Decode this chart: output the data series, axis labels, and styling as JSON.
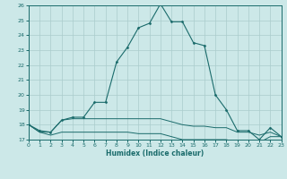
{
  "xlabel": "Humidex (Indice chaleur)",
  "background_color": "#cce8e8",
  "grid_color": "#aacccc",
  "line_color": "#1a6b6b",
  "x_values": [
    0,
    1,
    2,
    3,
    4,
    5,
    6,
    7,
    8,
    9,
    10,
    11,
    12,
    13,
    14,
    15,
    16,
    17,
    18,
    19,
    20,
    21,
    22,
    23
  ],
  "series1": [
    18.0,
    17.6,
    17.5,
    18.3,
    18.5,
    18.5,
    19.5,
    19.5,
    22.2,
    23.2,
    24.5,
    24.8,
    26.1,
    24.9,
    24.9,
    23.5,
    23.3,
    20.0,
    19.0,
    17.6,
    17.6,
    17.0,
    17.8,
    17.2
  ],
  "series2": [
    18.0,
    17.5,
    17.5,
    18.3,
    18.4,
    18.4,
    18.4,
    18.4,
    18.4,
    18.4,
    18.4,
    18.4,
    18.4,
    18.2,
    18.0,
    17.9,
    17.9,
    17.8,
    17.8,
    17.5,
    17.5,
    17.3,
    17.5,
    17.2
  ],
  "series3": [
    18.0,
    17.5,
    17.3,
    17.5,
    17.5,
    17.5,
    17.5,
    17.5,
    17.5,
    17.5,
    17.4,
    17.4,
    17.4,
    17.2,
    17.0,
    17.0,
    17.0,
    17.0,
    17.0,
    16.8,
    16.8,
    16.8,
    17.2,
    17.2
  ],
  "ylim": [
    17,
    26
  ],
  "xlim": [
    0,
    23
  ],
  "yticks": [
    17,
    18,
    19,
    20,
    21,
    22,
    23,
    24,
    25,
    26
  ],
  "xticks": [
    0,
    1,
    2,
    3,
    4,
    5,
    6,
    7,
    8,
    9,
    10,
    11,
    12,
    13,
    14,
    15,
    16,
    17,
    18,
    19,
    20,
    21,
    22,
    23
  ]
}
